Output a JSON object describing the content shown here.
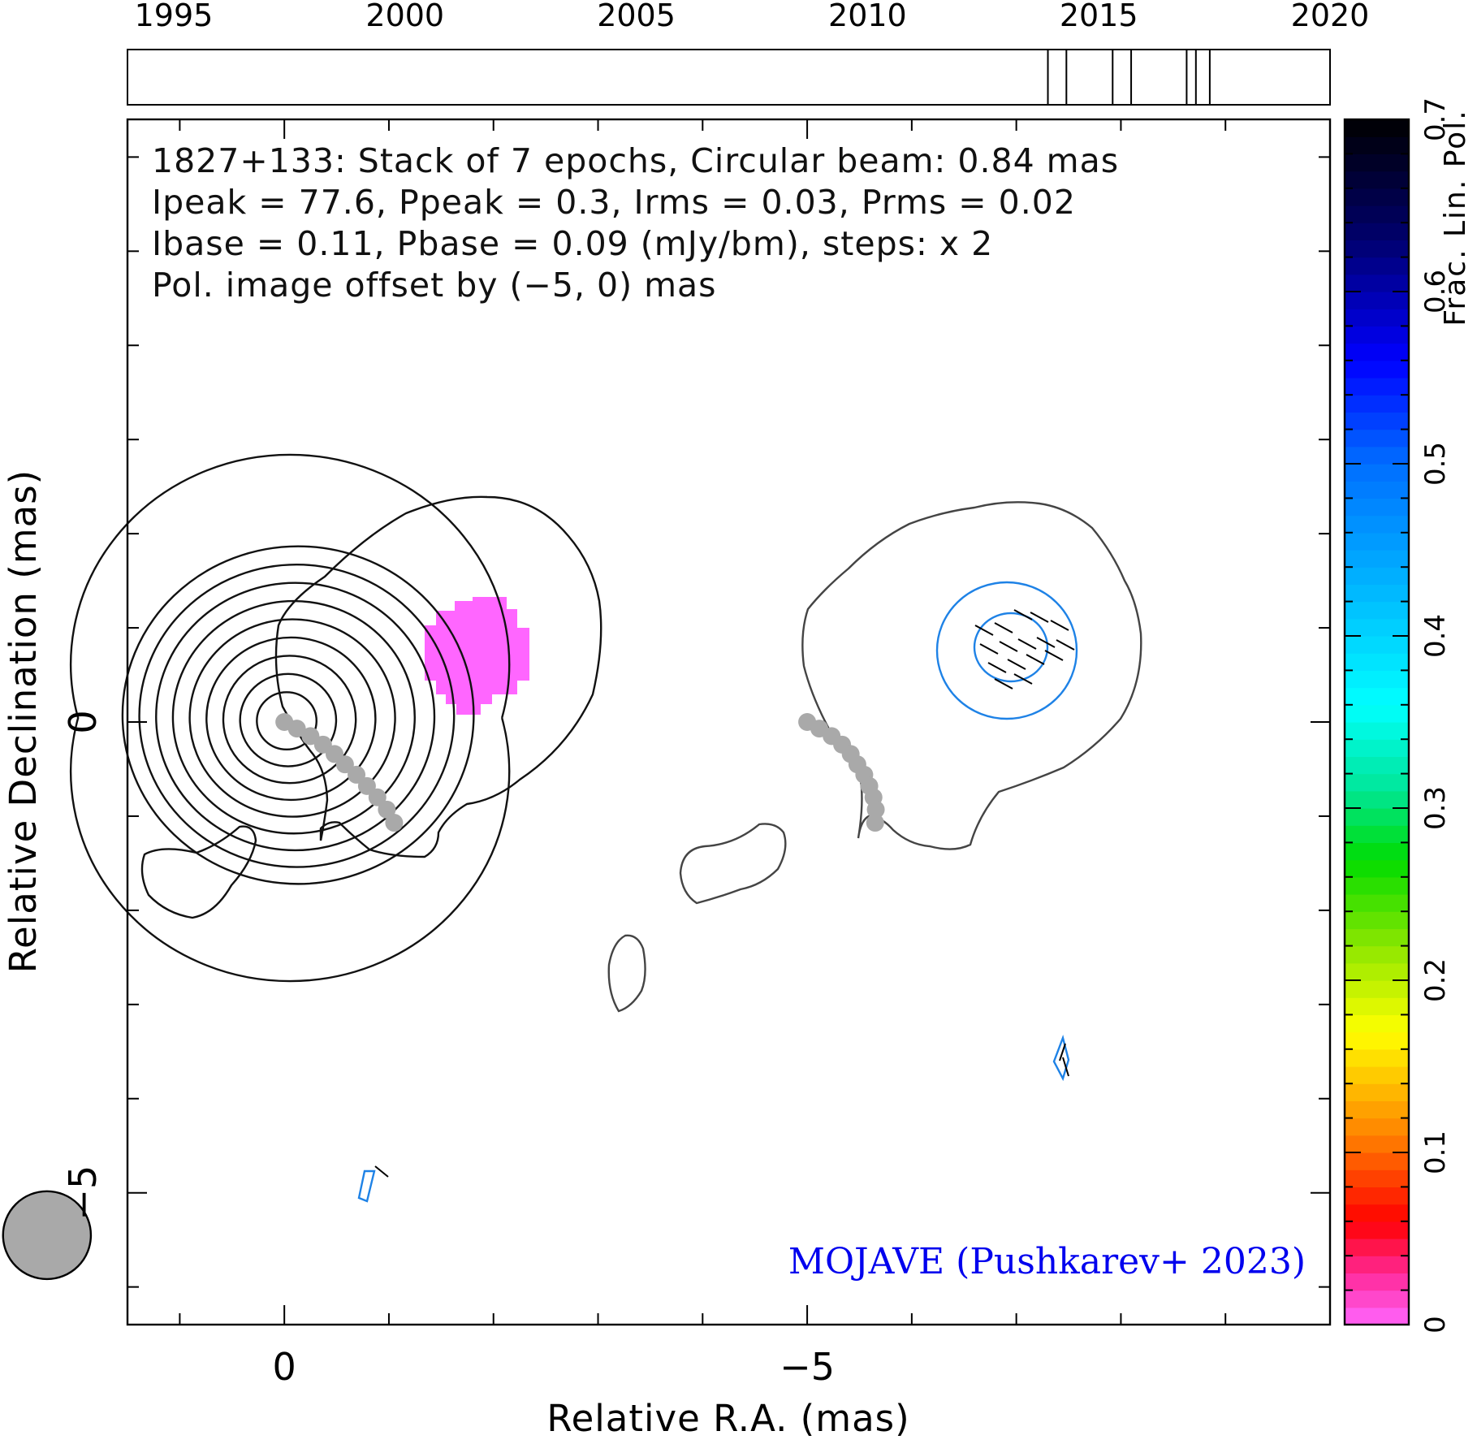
{
  "figure": {
    "info_lines": [
      "1827+133: Stack of 7 epochs, Circular beam: 0.84 mas",
      "Ipeak = 77.6, Ppeak = 0.3, Irms = 0.03, Prms = 0.02",
      "Ibase = 0.11, Pbase = 0.09 (mJy/bm), steps: x 2"
    ],
    "offset_note": "Pol. image offset by (−5, 0) mas",
    "credit": "MOJAVE (Pushkarev+ 2023)",
    "colors": {
      "contour_I": "#111111",
      "contour_I_offset": "#444444",
      "contour_P": "#1e82e6",
      "offset_note": "#1e82e6",
      "credit": "#0000ee",
      "jet_ridge": "#a9a9a9",
      "beam": "#a9a9a9",
      "peak_pol": "#ff66ff"
    }
  },
  "chart_data": [
    {
      "type": "timeline",
      "x_ticks": [
        1995,
        2000,
        2005,
        2010,
        2015,
        2020
      ],
      "x_tick_labels": [
        "1995",
        "2000",
        "2005",
        "2010",
        "2015",
        "2020"
      ],
      "xlim": [
        1994.0,
        2020.0
      ],
      "epochs": [
        2013.9,
        2014.3,
        2015.3,
        2015.7,
        2016.9,
        2017.1,
        2017.4
      ]
    },
    {
      "type": "contour",
      "xlabel": "Relative R.A. (mas)",
      "ylabel": "Relative Declination (mas)",
      "xlim": [
        1.5,
        -10.0
      ],
      "ylim": [
        -6.4,
        6.4
      ],
      "x_ticks": [
        0,
        -5
      ],
      "x_tick_labels": [
        "0",
        "−5"
      ],
      "y_ticks": [
        0,
        -5
      ],
      "y_tick_labels": [
        "0",
        "−5"
      ],
      "jet_ridge_mas": [
        [
          0.0,
          0.0
        ],
        [
          -0.12,
          -0.07
        ],
        [
          -0.25,
          -0.15
        ],
        [
          -0.37,
          -0.24
        ],
        [
          -0.48,
          -0.34
        ],
        [
          -0.58,
          -0.45
        ],
        [
          -0.69,
          -0.56
        ],
        [
          -0.79,
          -0.68
        ],
        [
          -0.89,
          -0.8
        ],
        [
          -0.98,
          -0.93
        ],
        [
          -1.05,
          -1.07
        ]
      ],
      "beam": {
        "fwhm_mas": 0.84,
        "center_mas": [
          2.27,
          -5.45
        ]
      },
      "colorbar": {
        "label": "Frac. Lin. Pol.",
        "range": [
          0.0,
          0.7
        ],
        "ticks": [
          0.0,
          0.1,
          0.2,
          0.3,
          0.4,
          0.5,
          0.6,
          0.7
        ],
        "tick_labels": [
          "0",
          "0.1",
          "0.2",
          "0.3",
          "0.4",
          "0.5",
          "0.6",
          "0.7"
        ]
      }
    }
  ]
}
